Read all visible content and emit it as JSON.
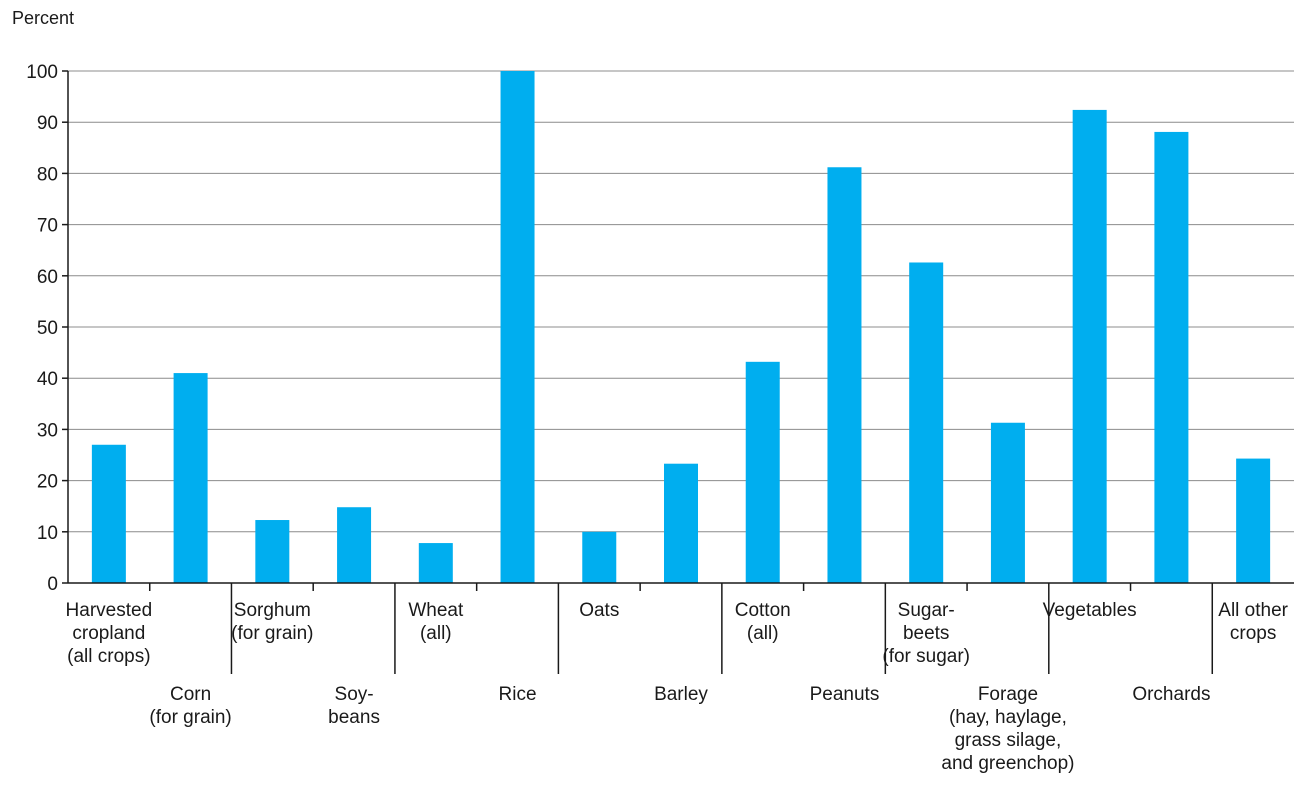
{
  "chart_data": {
    "type": "bar",
    "ylabel": "Percent",
    "ylim": [
      0,
      100
    ],
    "yticks": [
      0,
      10,
      20,
      30,
      40,
      50,
      60,
      70,
      80,
      90,
      100
    ],
    "grid": true,
    "bar_color": "#00AEEF",
    "categories": [
      "Harvested cropland (all crops)",
      "Corn (for grain)",
      "Sorghum (for grain)",
      "Soybeans",
      "Wheat (all)",
      "Rice",
      "Oats",
      "Barley",
      "Cotton (all)",
      "Peanuts",
      "Sugarbeets (for sugar)",
      "Forage (hay, haylage, grass silage, and greenchop)",
      "Vegetables",
      "Orchards",
      "All other crops"
    ],
    "category_label_lines": [
      [
        "Harvested",
        "cropland",
        "(all crops)"
      ],
      [
        "Corn",
        "(for grain)"
      ],
      [
        "Sorghum",
        "(for grain)"
      ],
      [
        "Soy-",
        "beans"
      ],
      [
        "Wheat",
        "(all)"
      ],
      [
        "Rice"
      ],
      [
        "Oats"
      ],
      [
        "Barley"
      ],
      [
        "Cotton",
        "(all)"
      ],
      [
        "Peanuts"
      ],
      [
        "Sugar-",
        "beets",
        "(for sugar)"
      ],
      [
        "Forage",
        "(hay, haylage,",
        "grass silage,",
        "and greenchop)"
      ],
      [
        "Vegetables"
      ],
      [
        "Orchards"
      ],
      [
        "All other",
        "crops"
      ]
    ],
    "values": [
      27,
      41,
      12.3,
      14.8,
      7.8,
      100,
      10,
      23.3,
      43.2,
      81.2,
      62.6,
      31.3,
      92.4,
      88.1,
      24.3
    ]
  }
}
